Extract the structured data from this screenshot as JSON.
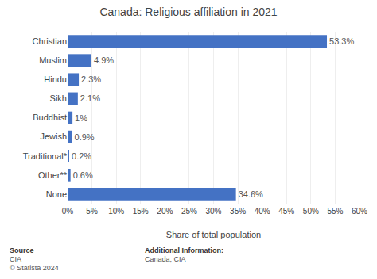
{
  "chart_data": {
    "type": "bar",
    "orientation": "horizontal",
    "title": "Canada: Religious affiliation in 2021",
    "categories": [
      "Christian",
      "Muslim",
      "Hindu",
      "Sikh",
      "Buddhist",
      "Jewish",
      "Traditional*",
      "Other**",
      "None"
    ],
    "values": [
      53.3,
      4.9,
      2.3,
      2.1,
      1.0,
      0.9,
      0.2,
      0.6,
      34.6
    ],
    "value_labels": [
      "53.3%",
      "4.9%",
      "2.3%",
      "2.1%",
      "1%",
      "0.9%",
      "0.2%",
      "0.6%",
      "34.6%"
    ],
    "data_labels": true,
    "color": "#4472c4",
    "xlabel": "Share of total population",
    "xlim": [
      0,
      60
    ],
    "xticks": [
      {
        "value": 0,
        "label": "0%"
      },
      {
        "value": 5,
        "label": "5%"
      },
      {
        "value": 10,
        "label": "10%"
      },
      {
        "value": 15,
        "label": "15%"
      },
      {
        "value": 20,
        "label": "20%"
      },
      {
        "value": 25,
        "label": "25%"
      },
      {
        "value": 30,
        "label": "30%"
      },
      {
        "value": 35,
        "label": "35%"
      },
      {
        "value": 40,
        "label": "40%"
      },
      {
        "value": 45,
        "label": "45%"
      },
      {
        "value": 50,
        "label": "50%"
      },
      {
        "value": 55,
        "label": "55%"
      },
      {
        "value": 60,
        "label": "60%"
      }
    ],
    "grid": true,
    "annotations": [
      [
        "Source",
        "CIA",
        "© Statista 2024"
      ],
      [
        "Additional Information:",
        "Canada; CIA"
      ]
    ]
  }
}
